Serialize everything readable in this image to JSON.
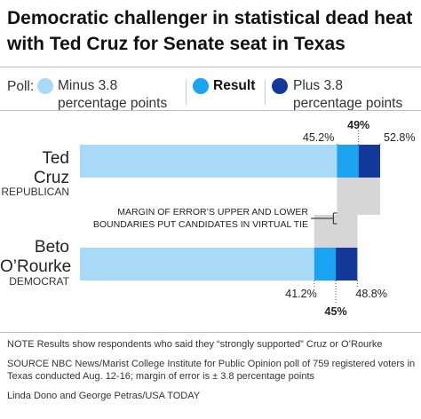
{
  "title": "Democratic challenger in statistical dead heat with Ted Cruz for Senate seat in Texas",
  "legend": {
    "label": "Poll:",
    "items": [
      {
        "line1": "Minus 3.8",
        "line2": "percentage points",
        "color": "#a8d9f7"
      },
      {
        "line1": "Result",
        "line2": "",
        "color": "#1ba3f0"
      },
      {
        "line1": "Plus 3.8",
        "line2": "percentage points",
        "color": "#13399a"
      }
    ]
  },
  "candidates": [
    {
      "name_line1": "Ted",
      "name_line2": "Cruz",
      "party": "REPUBLICAN"
    },
    {
      "name_line1": "Beto",
      "name_line2": "O’Rourke",
      "party": "DEMOCRAT"
    }
  ],
  "annotation": {
    "line1": "MARGIN OF ERROR’S UPPER AND LOWER",
    "line2": "BOUNDARIES PUT CANDIDATES IN VIRTUAL TIE"
  },
  "chart_data": {
    "type": "bar",
    "orientation": "horizontal",
    "categories": [
      "Ted Cruz",
      "Beto O’Rourke"
    ],
    "series": [
      {
        "name": "Minus 3.8 percentage points",
        "values": [
          45.2,
          41.2
        ]
      },
      {
        "name": "Result",
        "values": [
          49,
          45
        ]
      },
      {
        "name": "Plus 3.8 percentage points",
        "values": [
          52.8,
          48.8
        ]
      }
    ],
    "value_labels": {
      "Ted Cruz": [
        "45.2%",
        "49%",
        "52.8%"
      ],
      "Beto O’Rourke": [
        "41.2%",
        "45%",
        "48.8%"
      ]
    },
    "xlim": [
      0,
      52.8
    ],
    "colors": [
      "#a8d9f7",
      "#1ba3f0",
      "#13399a"
    ],
    "overlap_color": "#d6d6d6"
  },
  "notes": {
    "note": "NOTE Results show respondents who said they “strongly supported” Cruz or O’Rourke",
    "source": "SOURCE NBC News/Marist College Institute for Public Opinion poll of 759 registered voters in Texas conducted Aug. 12-16; margin of error is ± 3.8 percentage points",
    "credit": "Linda Dono and George Petras/USA TODAY"
  }
}
